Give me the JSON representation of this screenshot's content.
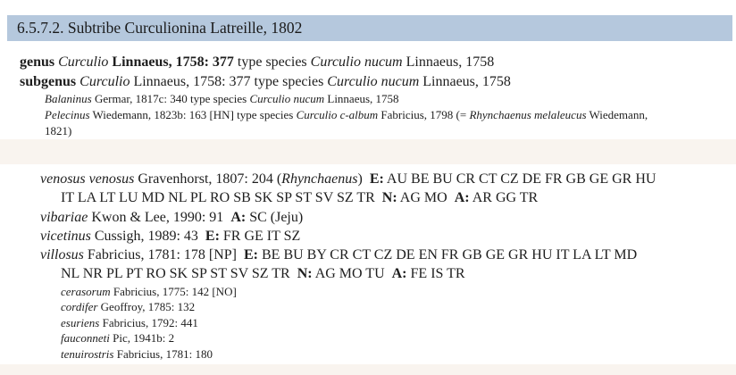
{
  "header": {
    "title": "6.5.7.2. Subtribe Curculionina Latreille, 1802",
    "bar_color": "#b5c8dd"
  },
  "colors": {
    "page_background": "#ffffff",
    "band_background": "#f9f4ef",
    "text": "#1e1e1e"
  },
  "top_block": {
    "lines": [
      {
        "kind": "main",
        "segments": [
          {
            "t": "genus ",
            "s": "b"
          },
          {
            "t": "Curculio",
            "s": "i"
          },
          {
            "t": " ",
            "s": ""
          },
          {
            "t": "Linnaeus, 1758: 377",
            "s": "b"
          },
          {
            "t": " type species ",
            "s": ""
          },
          {
            "t": "Curculio nucum",
            "s": "i"
          },
          {
            "t": " Linnaeus, 1758",
            "s": ""
          }
        ]
      },
      {
        "kind": "main",
        "segments": [
          {
            "t": "subgenus ",
            "s": "b"
          },
          {
            "t": "Curculio",
            "s": "i"
          },
          {
            "t": " Linnaeus, 1758: 377 type species ",
            "s": ""
          },
          {
            "t": "Curculio nucum",
            "s": "i"
          },
          {
            "t": " Linnaeus, 1758",
            "s": ""
          }
        ]
      },
      {
        "kind": "syn1",
        "segments": [
          {
            "t": "Balaninus",
            "s": "i"
          },
          {
            "t": " Germar, 1817c: 340 type species ",
            "s": ""
          },
          {
            "t": "Curculio nucum",
            "s": "i"
          },
          {
            "t": " Linnaeus, 1758",
            "s": ""
          }
        ]
      },
      {
        "kind": "syn1",
        "segments": [
          {
            "t": "Pelecinus",
            "s": "i"
          },
          {
            "t": " Wiedemann, 1823b: 163 [HN] type species ",
            "s": ""
          },
          {
            "t": "Curculio c-album",
            "s": "i"
          },
          {
            "t": " Fabricius, 1798 (= ",
            "s": ""
          },
          {
            "t": "Rhynchaenus melaleucus",
            "s": "i"
          },
          {
            "t": " Wiedemann,",
            "s": ""
          }
        ]
      },
      {
        "kind": "syn1",
        "segments": [
          {
            "t": "1821)",
            "s": ""
          }
        ]
      }
    ]
  },
  "species_block": {
    "lines": [
      {
        "kind": "species",
        "segments": [
          {
            "t": "venosus venosus",
            "s": "i"
          },
          {
            "t": " Gravenhorst, 1807: 204 (",
            "s": ""
          },
          {
            "t": "Rhynchaenus",
            "s": "i"
          },
          {
            "t": ")  ",
            "s": ""
          },
          {
            "t": "E:",
            "s": "b"
          },
          {
            "t": " AU BE BU CR CT CZ DE FR GB GE GR HU",
            "s": ""
          }
        ]
      },
      {
        "kind": "cont",
        "segments": [
          {
            "t": "IT LA LT LU MD NL PL RO SB SK SP ST SV SZ TR  ",
            "s": ""
          },
          {
            "t": "N:",
            "s": "b"
          },
          {
            "t": " AG MO  ",
            "s": ""
          },
          {
            "t": "A:",
            "s": "b"
          },
          {
            "t": " AR GG TR",
            "s": ""
          }
        ]
      },
      {
        "kind": "species",
        "segments": [
          {
            "t": "vibariae",
            "s": "i"
          },
          {
            "t": " Kwon & Lee, 1990: 91  ",
            "s": ""
          },
          {
            "t": "A:",
            "s": "b"
          },
          {
            "t": " SC (Jeju)",
            "s": ""
          }
        ]
      },
      {
        "kind": "species",
        "segments": [
          {
            "t": "vicetinus",
            "s": "i"
          },
          {
            "t": " Cussigh, 1989: 43  ",
            "s": ""
          },
          {
            "t": "E:",
            "s": "b"
          },
          {
            "t": " FR GE IT SZ",
            "s": ""
          }
        ]
      },
      {
        "kind": "species",
        "segments": [
          {
            "t": "villosus",
            "s": "i"
          },
          {
            "t": " Fabricius, 1781: 178 [NP]  ",
            "s": ""
          },
          {
            "t": "E:",
            "s": "b"
          },
          {
            "t": " BE BU BY CR CT CZ DE EN FR GB GE GR HU IT LA LT MD",
            "s": ""
          }
        ]
      },
      {
        "kind": "cont",
        "segments": [
          {
            "t": "NL NR PL PT RO SK SP ST SV SZ TR  ",
            "s": ""
          },
          {
            "t": "N:",
            "s": "b"
          },
          {
            "t": " AG MO TU  ",
            "s": ""
          },
          {
            "t": "A:",
            "s": "b"
          },
          {
            "t": " FE IS TR",
            "s": ""
          }
        ]
      },
      {
        "kind": "syn2",
        "segments": [
          {
            "t": "cerasorum",
            "s": "i"
          },
          {
            "t": " Fabricius, 1775: 142 [NO]",
            "s": ""
          }
        ]
      },
      {
        "kind": "syn2",
        "segments": [
          {
            "t": "cordifer",
            "s": "i"
          },
          {
            "t": " Geoffroy, 1785: 132",
            "s": ""
          }
        ]
      },
      {
        "kind": "syn2",
        "segments": [
          {
            "t": "esuriens",
            "s": "i"
          },
          {
            "t": " Fabricius, 1792: 441",
            "s": ""
          }
        ]
      },
      {
        "kind": "syn2",
        "segments": [
          {
            "t": "fauconneti",
            "s": "i"
          },
          {
            "t": " Pic, 1941b: 2",
            "s": ""
          }
        ]
      },
      {
        "kind": "syn2",
        "segments": [
          {
            "t": "tenuirostris",
            "s": "i"
          },
          {
            "t": " Fabricius, 1781: 180",
            "s": ""
          }
        ]
      }
    ]
  }
}
